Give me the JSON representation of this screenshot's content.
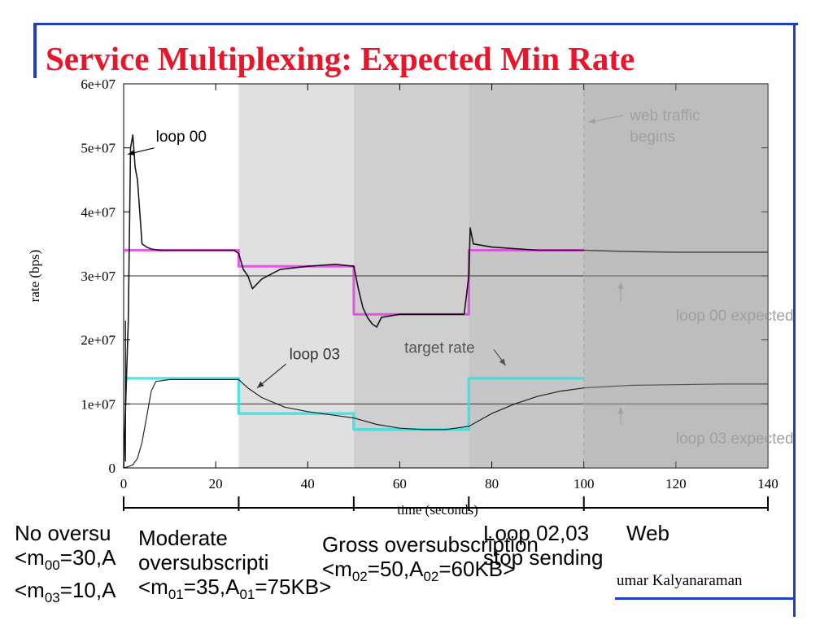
{
  "slide": {
    "title": "Service Multiplexing: Expected Min Rate",
    "author": "umar Kalyanaraman",
    "accent_color": "#1f3fbf",
    "title_color": "#e8162a"
  },
  "phases": [
    {
      "line1": "No oversu",
      "line2_pre": "<m",
      "line2_sub": "00",
      "line2_post": "=30,A",
      "line3_pre": "<m",
      "line3_sub": "03",
      "line3_post": "=10,A"
    },
    {
      "line1": "Moderate",
      "line2": "oversubscripti",
      "line3_pre": "<m",
      "line3_sub": "01",
      "line3_mid": "=35,A",
      "line3_sub2": "01",
      "line3_post": "=75KB>"
    },
    {
      "line1": "Gross oversubscription",
      "line2_pre": "<m",
      "line2_sub": "02",
      "line2_mid": "=50,A",
      "line2_sub2": "02",
      "line2_post": "=60KB>"
    },
    {
      "line1": "Loop 02,03",
      "line2": "stop sending"
    },
    {
      "line1": "Web"
    }
  ],
  "chart_data": {
    "type": "line",
    "xlabel": "time (seconds)",
    "ylabel": "rate (bps)",
    "xlim": [
      0,
      140
    ],
    "ylim": [
      0,
      60000000
    ],
    "x_ticks": [
      0,
      20,
      40,
      60,
      80,
      100,
      120,
      140
    ],
    "x_tick_labels": [
      "0",
      "20",
      "40",
      "60",
      "80",
      "100",
      "120",
      "140"
    ],
    "y_ticks": [
      0,
      10000000,
      20000000,
      30000000,
      40000000,
      50000000,
      60000000
    ],
    "y_tick_labels": [
      "0",
      "1e+07",
      "2e+07",
      "3e+07",
      "4e+07",
      "5e+07",
      "6e+07"
    ],
    "phase_boundaries": [
      0,
      25,
      50,
      75,
      100,
      140
    ],
    "series": [
      {
        "name": "loop 00 expected",
        "color": "#e040e0",
        "step": true,
        "x": [
          0,
          25,
          25,
          50,
          50,
          75,
          75,
          100
        ],
        "y": [
          34000000,
          34000000,
          31500000,
          31500000,
          24000000,
          24000000,
          34000000,
          34000000
        ]
      },
      {
        "name": "loop 03 expected",
        "color": "#30e0e0",
        "step": true,
        "x": [
          0,
          25,
          25,
          50,
          50,
          75,
          75,
          100
        ],
        "y": [
          14000000,
          14000000,
          8500000,
          8500000,
          6000000,
          6000000,
          14000000,
          14000000
        ]
      },
      {
        "name": "loop 00",
        "color": "#000000",
        "x": [
          0,
          1,
          1.5,
          2,
          2.5,
          3,
          3.5,
          4,
          5,
          6,
          8,
          12,
          16,
          20,
          24,
          25,
          26,
          27,
          28,
          30,
          34,
          40,
          46,
          50,
          51,
          52,
          53,
          54,
          55,
          56,
          60,
          65,
          70,
          74,
          75,
          75.3,
          76,
          80,
          90,
          100,
          110,
          120,
          130,
          140
        ],
        "y": [
          0,
          23000000,
          50000000,
          52000000,
          47000000,
          45000000,
          40000000,
          35000000,
          34500000,
          34200000,
          34000000,
          34000000,
          34000000,
          34000000,
          34000000,
          33500000,
          31000000,
          30000000,
          28000000,
          29500000,
          31000000,
          31500000,
          31800000,
          31500000,
          28000000,
          25000000,
          23500000,
          22500000,
          22000000,
          23500000,
          24000000,
          24000000,
          24000000,
          24000000,
          30000000,
          37500000,
          35000000,
          34500000,
          34000000,
          34000000,
          33800000,
          33700000,
          33700000,
          33700000
        ]
      },
      {
        "name": "loop 03",
        "color": "#000000",
        "x": [
          0,
          1,
          2,
          3,
          4,
          5,
          6,
          7,
          10,
          15,
          20,
          25,
          27,
          30,
          35,
          40,
          45,
          50,
          55,
          60,
          65,
          70,
          75,
          80,
          85,
          90,
          95,
          100,
          110,
          120,
          130,
          140
        ],
        "y": [
          0,
          200000,
          500000,
          1500000,
          4000000,
          8000000,
          12000000,
          13500000,
          13800000,
          13800000,
          13800000,
          13800000,
          12500000,
          11000000,
          9500000,
          8800000,
          8300000,
          7800000,
          6800000,
          6200000,
          6000000,
          6000000,
          6500000,
          8500000,
          10000000,
          11200000,
          12000000,
          12500000,
          12900000,
          13000000,
          13100000,
          13100000
        ]
      }
    ],
    "annotations": [
      {
        "text": "loop 00",
        "x": 7,
        "y": 51000000,
        "points_to": [
          0.9,
          49000000
        ]
      },
      {
        "text": "loop 03",
        "x": 36,
        "y": 17000000,
        "points_to": [
          29,
          12500000
        ]
      },
      {
        "text": "target rate",
        "x": 61,
        "y": 18000000,
        "points_to": [
          83,
          16000000
        ]
      },
      {
        "text": "web traffic",
        "x": 110,
        "y": 54300000,
        "points_to": [
          101,
          54000000
        ]
      },
      {
        "text": "begins",
        "x": 110,
        "y": 51000000
      },
      {
        "text": "loop 00 expected",
        "x": 120,
        "y": 23000000,
        "points_to": [
          108,
          29000000
        ]
      },
      {
        "text": "loop 03 expected",
        "x": 120,
        "y": 3800000,
        "points_to": [
          108,
          9500000
        ]
      }
    ]
  }
}
